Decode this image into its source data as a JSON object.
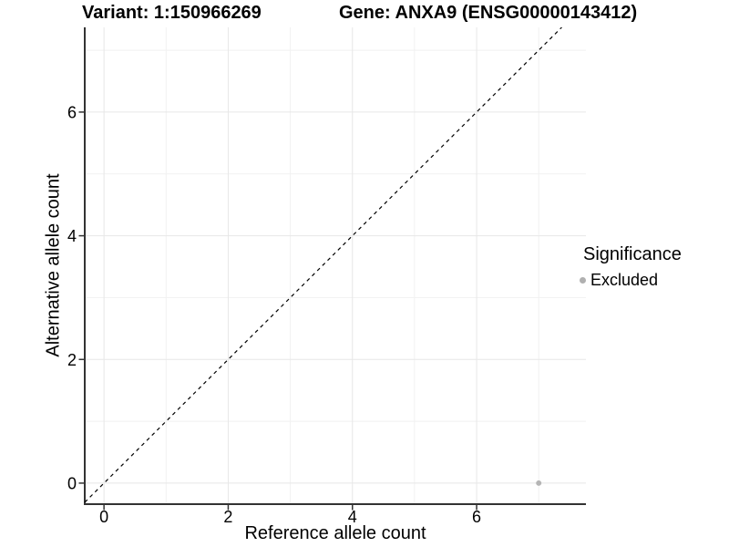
{
  "titles": {
    "left": "Variant: 1:150966269",
    "right": "Gene: ANXA9 (ENSG00000143412)"
  },
  "chart_data": {
    "type": "scatter",
    "xlabel": "Reference allele count",
    "ylabel": "Alternative allele count",
    "xlim": [
      -0.31,
      7.76
    ],
    "ylim": [
      -0.34,
      7.37
    ],
    "x_major_ticks": [
      0,
      2,
      4,
      6
    ],
    "x_minor_ticks": [
      1,
      3,
      5,
      7
    ],
    "y_major_ticks": [
      0,
      2,
      4,
      6
    ],
    "y_minor_ticks": [
      1,
      3,
      5,
      7
    ],
    "grid": true,
    "identity_line": {
      "slope": 1,
      "intercept": 0,
      "style": "dashed",
      "color": "#000000"
    },
    "points": [
      {
        "x": 7,
        "y": 0,
        "series": "Excluded",
        "color": "#b5b5b5"
      }
    ],
    "legend": {
      "title": "Significance",
      "position": "right",
      "entries": [
        {
          "label": "Excluded",
          "marker": "circle",
          "color": "#b0b0b0"
        }
      ]
    },
    "colors": {
      "axis_line": "#333333",
      "tick_mark": "#333333",
      "tick_label": "#000000",
      "grid_major": "#e7e7e7",
      "grid_minor": "#f1f1f1",
      "panel_background": "#ffffff"
    }
  }
}
